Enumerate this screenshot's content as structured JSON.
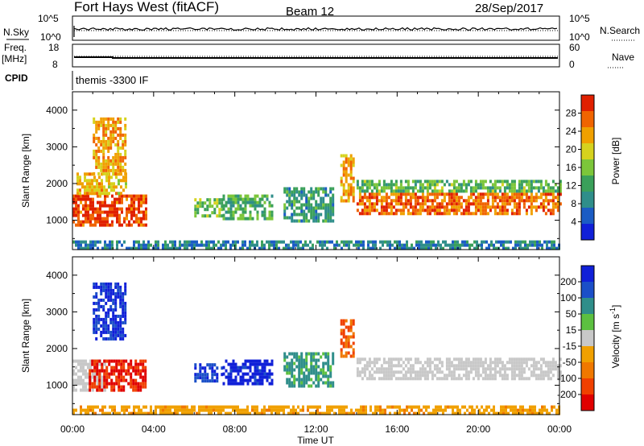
{
  "header": {
    "station": "Fort Hays West (fitACF)",
    "beam": "Beam 12",
    "date": "28/Sep/2017"
  },
  "top_strip": {
    "nsky_label": "N.Sky",
    "nsky_ticks": [
      "10^5",
      "10^0"
    ],
    "nsearch_label": "N.Search",
    "nsearch_ticks": [
      "10^5",
      "10^0"
    ]
  },
  "freq_strip": {
    "freq_label_1": "Freq.",
    "freq_label_2": "[MHz]",
    "freq_ticks": [
      "18",
      "8"
    ],
    "nave_label": "Nave",
    "nave_ticks": [
      "60",
      "0"
    ]
  },
  "cpid": {
    "label": "CPID",
    "value": "themis -3300 IF"
  },
  "colors": {
    "power": [
      "#1020d8",
      "#1b5cc4",
      "#2f8e8a",
      "#3aa05a",
      "#7cc63a",
      "#d6d21e",
      "#f0a000",
      "#f06400",
      "#e02000"
    ],
    "velocity": [
      "#1020d8",
      "#1b4fc8",
      "#2f8e8a",
      "#5cc040",
      "#c8c8c8",
      "#f0a000",
      "#f07800",
      "#f04000",
      "#e00000"
    ],
    "ground_scatter": "#c8c8c8"
  },
  "chart_data": [
    {
      "type": "heatmap",
      "name": "power",
      "xlabel": "",
      "ylabel": "Slant Range [km]",
      "xlim": [
        0,
        24
      ],
      "ylim": [
        200,
        4500
      ],
      "yticks": [
        1000,
        2000,
        3000,
        4000
      ],
      "x_tick_labels": [
        "00:00",
        "04:00",
        "08:00",
        "12:00",
        "16:00",
        "20:00",
        "00:00"
      ],
      "colorbar": {
        "label": "Power [dB]",
        "ticks": [
          "4",
          "8",
          "12",
          "16",
          "20",
          "24",
          "28"
        ],
        "range": [
          0,
          30
        ]
      },
      "regions": [
        {
          "t0": 0.0,
          "t1": 3.6,
          "r0": 900,
          "r1": 1700,
          "level": 27
        },
        {
          "t0": 0.2,
          "t1": 2.6,
          "r0": 1700,
          "r1": 2300,
          "level": 20
        },
        {
          "t0": 1.0,
          "t1": 2.6,
          "r0": 2300,
          "r1": 3800,
          "level": 22
        },
        {
          "t0": 6.0,
          "t1": 7.4,
          "r0": 1100,
          "r1": 1600,
          "level": 14
        },
        {
          "t0": 7.4,
          "t1": 9.8,
          "r0": 1000,
          "r1": 1700,
          "level": 12
        },
        {
          "t0": 10.4,
          "t1": 12.8,
          "r0": 1000,
          "r1": 1900,
          "level": 10
        },
        {
          "t0": 13.2,
          "t1": 13.9,
          "r0": 1500,
          "r1": 2800,
          "level": 22
        },
        {
          "t0": 14.0,
          "t1": 24.0,
          "r0": 1150,
          "r1": 1750,
          "level": 25
        },
        {
          "t0": 14.0,
          "t1": 24.0,
          "r0": 1750,
          "r1": 2100,
          "level": 13
        },
        {
          "t0": 0.0,
          "t1": 24.0,
          "r0": 200,
          "r1": 450,
          "level": 8
        }
      ]
    },
    {
      "type": "heatmap",
      "name": "velocity",
      "xlabel": "Time UT",
      "ylabel": "Slant Range [km]",
      "xlim": [
        0,
        24
      ],
      "ylim": [
        200,
        4500
      ],
      "yticks": [
        1000,
        2000,
        3000,
        4000
      ],
      "x_tick_labels": [
        "00:00",
        "04:00",
        "08:00",
        "12:00",
        "16:00",
        "20:00",
        "00:00"
      ],
      "colorbar": {
        "label": "Velocity [m s^-1]",
        "ticks": [
          "200",
          "100",
          "50",
          "15",
          "-15",
          "-50",
          "-100",
          "-200"
        ],
        "range": [
          -250,
          250
        ]
      },
      "regions": [
        {
          "t0": 0.0,
          "t1": 1.6,
          "r0": 900,
          "r1": 1700,
          "level": 0,
          "ground": true
        },
        {
          "t0": 0.8,
          "t1": 3.6,
          "r0": 900,
          "r1": 1700,
          "level": -200
        },
        {
          "t0": 1.0,
          "t1": 2.6,
          "r0": 2300,
          "r1": 3800,
          "level": 200
        },
        {
          "t0": 6.0,
          "t1": 7.4,
          "r0": 1100,
          "r1": 1600,
          "level": 180
        },
        {
          "t0": 7.4,
          "t1": 9.8,
          "r0": 1000,
          "r1": 1700,
          "level": 220
        },
        {
          "t0": 10.4,
          "t1": 12.8,
          "r0": 1000,
          "r1": 1900,
          "level": 100
        },
        {
          "t0": 13.2,
          "t1": 13.9,
          "r0": 1800,
          "r1": 2800,
          "level": -150
        },
        {
          "t0": 14.0,
          "t1": 24.0,
          "r0": 1150,
          "r1": 1750,
          "level": 0,
          "ground": true
        },
        {
          "t0": 0.0,
          "t1": 24.0,
          "r0": 200,
          "r1": 450,
          "level": -60
        }
      ]
    }
  ]
}
